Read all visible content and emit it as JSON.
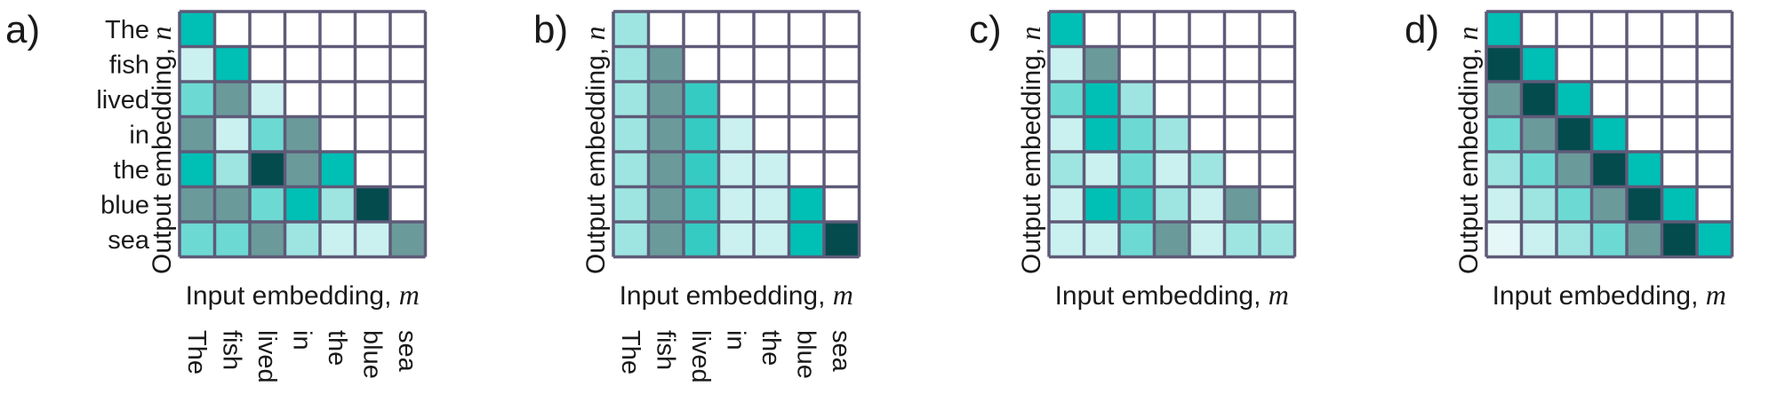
{
  "words": [
    "The",
    "fish",
    "lived",
    "in",
    "the",
    "blue",
    "sea"
  ],
  "palette": [
    "#ffffff",
    "#e6f7f7",
    "#caf1f0",
    "#9ee5e1",
    "#6cdad3",
    "#36cbc2",
    "#00bfb5",
    "#6b9a9b",
    "#034b4d"
  ],
  "grid_line_color": "#5e5a78",
  "panels": [
    {
      "letter": "a)",
      "x_label": "Input embedding, ",
      "x_var": "m",
      "y_label": "Output embedding, ",
      "y_var": "n",
      "show_row_words": true,
      "show_col_words": true,
      "cells": [
        [
          6,
          0,
          0,
          0,
          0,
          0,
          0
        ],
        [
          2,
          6,
          0,
          0,
          0,
          0,
          0
        ],
        [
          4,
          7,
          2,
          0,
          0,
          0,
          0
        ],
        [
          7,
          2,
          4,
          7,
          0,
          0,
          0
        ],
        [
          6,
          3,
          8,
          7,
          6,
          0,
          0
        ],
        [
          7,
          7,
          4,
          6,
          3,
          8,
          0
        ],
        [
          4,
          4,
          7,
          3,
          2,
          2,
          7
        ]
      ]
    },
    {
      "letter": "b)",
      "x_label": "Input embedding, ",
      "x_var": "m",
      "y_label": "Output embedding, ",
      "y_var": "n",
      "show_row_words": false,
      "show_col_words": true,
      "cells": [
        [
          3,
          0,
          0,
          0,
          0,
          0,
          0
        ],
        [
          3,
          7,
          0,
          0,
          0,
          0,
          0
        ],
        [
          3,
          7,
          5,
          0,
          0,
          0,
          0
        ],
        [
          3,
          7,
          5,
          2,
          0,
          0,
          0
        ],
        [
          3,
          7,
          5,
          2,
          2,
          0,
          0
        ],
        [
          3,
          7,
          5,
          2,
          2,
          6,
          0
        ],
        [
          3,
          7,
          5,
          2,
          2,
          6,
          8
        ]
      ]
    },
    {
      "letter": "c)",
      "x_label": "Input embedding, ",
      "x_var": "m",
      "y_label": "Output embedding, ",
      "y_var": "n",
      "show_row_words": false,
      "show_col_words": false,
      "cells": [
        [
          6,
          0,
          0,
          0,
          0,
          0,
          0
        ],
        [
          2,
          7,
          0,
          0,
          0,
          0,
          0
        ],
        [
          4,
          6,
          3,
          0,
          0,
          0,
          0
        ],
        [
          2,
          6,
          4,
          3,
          0,
          0,
          0
        ],
        [
          3,
          2,
          4,
          2,
          3,
          0,
          0
        ],
        [
          2,
          6,
          5,
          3,
          2,
          7,
          0
        ],
        [
          2,
          2,
          4,
          7,
          2,
          3,
          3
        ]
      ]
    },
    {
      "letter": "d)",
      "x_label": "Input embedding, ",
      "x_var": "m",
      "y_label": "Output embedding, ",
      "y_var": "n",
      "show_row_words": false,
      "show_col_words": false,
      "cells": [
        [
          6,
          0,
          0,
          0,
          0,
          0,
          0
        ],
        [
          8,
          6,
          0,
          0,
          0,
          0,
          0
        ],
        [
          7,
          8,
          6,
          0,
          0,
          0,
          0
        ],
        [
          4,
          7,
          8,
          6,
          0,
          0,
          0
        ],
        [
          3,
          4,
          7,
          8,
          6,
          0,
          0
        ],
        [
          2,
          3,
          4,
          7,
          8,
          6,
          0
        ],
        [
          1,
          2,
          3,
          4,
          7,
          8,
          6
        ]
      ]
    }
  ]
}
